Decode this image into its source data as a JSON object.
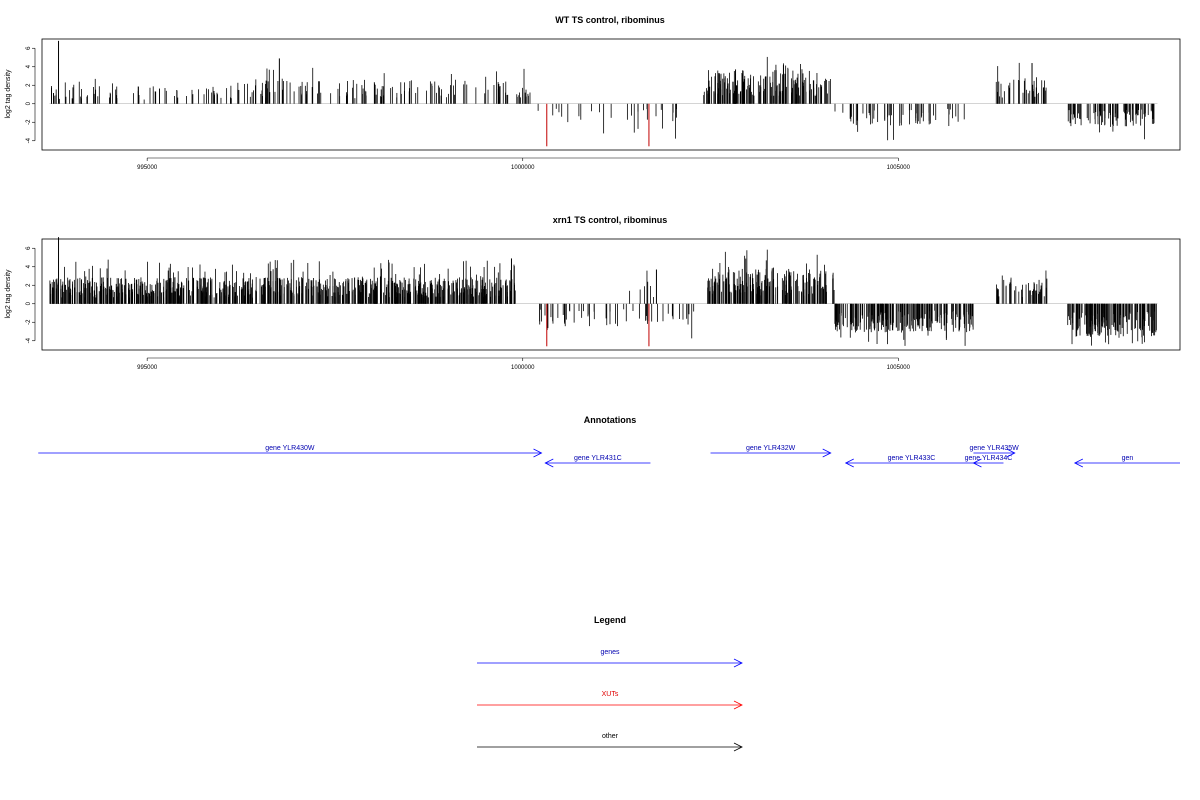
{
  "chart_data": [
    {
      "type": "bar",
      "title": "WT TS control, ribominus",
      "ylabel": "log2 tag density",
      "xlabel": "",
      "xlim": [
        993600,
        1008750
      ],
      "ylim": [
        -5,
        7
      ],
      "yticks": [
        -4,
        -2,
        0,
        2,
        4,
        6
      ],
      "xticks": [
        995000,
        1000000,
        1005000
      ],
      "xtick_labels": [
        "995000",
        "1000000",
        "1005000"
      ],
      "segments": [
        {
          "x0": 993700,
          "x1": 994600,
          "sign": 1,
          "mean": 1.6,
          "max": 2.9,
          "density": 0.05,
          "color": "#000000"
        },
        {
          "x0": 994800,
          "x1": 996200,
          "sign": 1,
          "mean": 1.5,
          "max": 2.9,
          "density": 0.035,
          "color": "#000000"
        },
        {
          "x0": 996200,
          "x1": 1000100,
          "sign": 1,
          "mean": 2.0,
          "max": 4.0,
          "density": 0.05,
          "color": "#000000"
        },
        {
          "x0": 1000200,
          "x1": 1002050,
          "sign": -1,
          "mean": 1.8,
          "max": 3.8,
          "density": 0.02,
          "color": "#000000"
        },
        {
          "x0": 1002400,
          "x1": 1003400,
          "sign": 1,
          "mean": 2.8,
          "max": 5.8,
          "density": 0.15,
          "color": "#000000"
        },
        {
          "x0": 1003400,
          "x1": 1004100,
          "sign": 1,
          "mean": 2.6,
          "max": 4.5,
          "density": 0.12,
          "color": "#000000"
        },
        {
          "x0": 1004150,
          "x1": 1005900,
          "sign": -1,
          "mean": 1.8,
          "max": 4.0,
          "density": 0.045,
          "color": "#000000"
        },
        {
          "x0": 1006300,
          "x1": 1007000,
          "sign": 1,
          "mean": 2.2,
          "max": 4.5,
          "density": 0.07,
          "color": "#000000"
        },
        {
          "x0": 1007250,
          "x1": 1008450,
          "sign": -1,
          "mean": 2.0,
          "max": 4.0,
          "density": 0.1,
          "color": "#000000"
        }
      ],
      "spikes": [
        {
          "x": 993820,
          "y": 6.8,
          "color": "#000000"
        },
        {
          "x": 996760,
          "y": 4.9,
          "color": "#000000"
        },
        {
          "x": 1000320,
          "y": -4.6,
          "color": "#c00000"
        },
        {
          "x": 1001680,
          "y": -4.6,
          "color": "#c00000"
        },
        {
          "x": 1006780,
          "y": 4.4,
          "color": "#000000"
        }
      ]
    },
    {
      "type": "bar",
      "title": "xrn1 TS control, ribominus",
      "ylabel": "log2 tag density",
      "xlabel": "",
      "xlim": [
        993600,
        1008750
      ],
      "ylim": [
        -5,
        7
      ],
      "yticks": [
        -4,
        -2,
        0,
        2,
        4,
        6
      ],
      "xticks": [
        995000,
        1000000,
        1005000
      ],
      "xtick_labels": [
        "995000",
        "1000000",
        "1005000"
      ],
      "segments": [
        {
          "x0": 993700,
          "x1": 999900,
          "sign": 1,
          "mean": 2.2,
          "max": 4.8,
          "density": 0.17,
          "color": "#000000"
        },
        {
          "x0": 1000200,
          "x1": 1002350,
          "sign": -1,
          "mean": 1.9,
          "max": 4.0,
          "density": 0.035,
          "color": "#000000"
        },
        {
          "x0": 1001350,
          "x1": 1001800,
          "sign": 1,
          "mean": 1.5,
          "max": 3.7,
          "density": 0.02,
          "color": "#000000"
        },
        {
          "x0": 1002450,
          "x1": 1003400,
          "sign": 1,
          "mean": 3.0,
          "max": 6.0,
          "density": 0.17,
          "color": "#000000"
        },
        {
          "x0": 1003450,
          "x1": 1004150,
          "sign": 1,
          "mean": 2.8,
          "max": 5.6,
          "density": 0.15,
          "color": "#000000"
        },
        {
          "x0": 1004150,
          "x1": 1006000,
          "sign": -1,
          "mean": 2.4,
          "max": 4.6,
          "density": 0.15,
          "color": "#000000"
        },
        {
          "x0": 1006300,
          "x1": 1007050,
          "sign": 1,
          "mean": 2.2,
          "max": 4.6,
          "density": 0.09,
          "color": "#000000"
        },
        {
          "x0": 1007250,
          "x1": 1008450,
          "sign": -1,
          "mean": 2.8,
          "max": 4.6,
          "density": 0.17,
          "color": "#000000"
        }
      ],
      "spikes": [
        {
          "x": 993820,
          "y": 7.2,
          "color": "#000000"
        },
        {
          "x": 999850,
          "y": 4.9,
          "color": "#000000"
        },
        {
          "x": 1000320,
          "y": -4.6,
          "color": "#c00000"
        },
        {
          "x": 1001680,
          "y": -4.6,
          "color": "#c00000"
        },
        {
          "x": 1001780,
          "y": 3.7,
          "color": "#000000"
        }
      ]
    }
  ],
  "annotations": {
    "title": "Annotations",
    "genes": [
      {
        "label": "gene YLR430W",
        "x0": 993550,
        "x1": 1000250,
        "dir": "right",
        "row": 0
      },
      {
        "label": "gene YLR431C",
        "x0": 1000300,
        "x1": 1001700,
        "dir": "left",
        "row": 1
      },
      {
        "label": "gene YLR432W",
        "x0": 1002500,
        "x1": 1004100,
        "dir": "right",
        "row": 0
      },
      {
        "label": "gene YLR433C",
        "x0": 1004300,
        "x1": 1006050,
        "dir": "left",
        "row": 1
      },
      {
        "label": "gene YLR434C",
        "x0": 1006000,
        "x1": 1006400,
        "dir": "left",
        "row": 1
      },
      {
        "label": "gene YLR435W",
        "x0": 1006000,
        "x1": 1006550,
        "dir": "right",
        "row": 0
      },
      {
        "label": "gen",
        "x0": 1007350,
        "x1": 1008750,
        "dir": "left",
        "row": 1
      }
    ]
  },
  "legend": {
    "title": "Legend",
    "items": [
      {
        "label": "genes",
        "color": "#0000ff"
      },
      {
        "label": "XUTs",
        "color": "#ff0000"
      },
      {
        "label": "other",
        "color": "#000000"
      }
    ]
  },
  "colors": {
    "gene_line": "#0000ff",
    "gene_text": "#0000b0",
    "bar": "#000000",
    "xut_bar": "#c00000",
    "zero_line": "#aaaaaa"
  }
}
